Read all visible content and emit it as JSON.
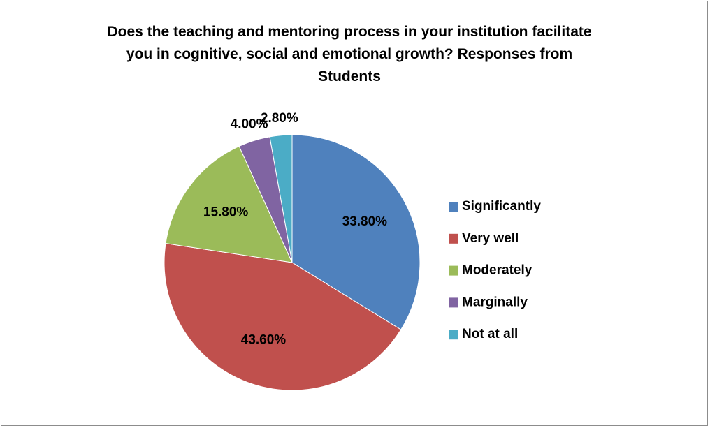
{
  "chart_data": {
    "type": "pie",
    "title": "Does the teaching and mentoring process in your institution facilitate you in cognitive, social and emotional growth? Responses from Students",
    "categories": [
      "Significantly",
      "Very well",
      "Moderately",
      "Marginally",
      "Not at all"
    ],
    "values": [
      33.8,
      43.6,
      15.8,
      4.0,
      2.8
    ],
    "value_labels": [
      "33.80%",
      "43.60%",
      "15.80%",
      "4.00%",
      "2.80%"
    ],
    "colors": [
      "#4f81bd",
      "#c0504d",
      "#9bbb59",
      "#8064a2",
      "#4bacc6"
    ],
    "legend": "right"
  }
}
